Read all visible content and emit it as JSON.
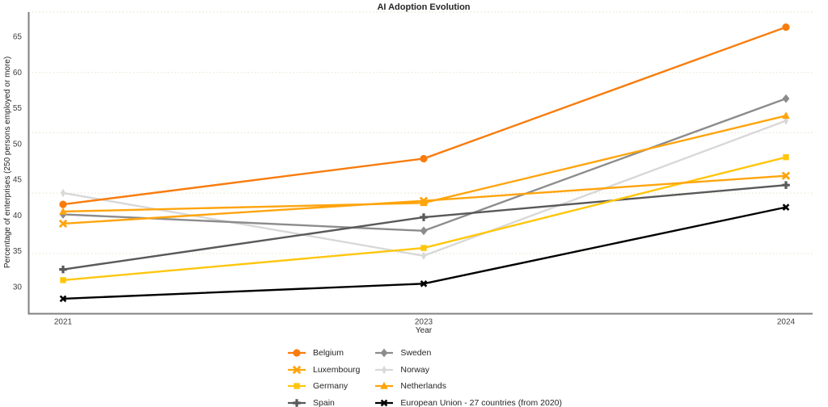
{
  "title": "AI Adoption Evolution",
  "chart_data": {
    "type": "line",
    "title": "AI Adoption Evolution",
    "xlabel": "Year",
    "ylabel": "Percentage of enterprises (250 persons employed or more)",
    "x_categories": [
      "2021",
      "2023",
      "2024"
    ],
    "yticks": [
      30,
      35,
      40,
      45,
      50,
      55,
      60,
      65
    ],
    "ylim": [
      26.2,
      68.4
    ],
    "grid": "horizontal dotted lines, 5 evenly spaced",
    "grid_color": "#EBE4D4",
    "axis_color": "#808080",
    "tick_color": "#404040",
    "legend_position": "bottom, two columns",
    "series": [
      {
        "name": "Belgium",
        "color": "#F87C0D",
        "marker": "circle",
        "values": [
          41.5,
          47.9,
          66.3
        ]
      },
      {
        "name": "Luxembourg",
        "color": "#FFA40D",
        "marker": "x",
        "values": [
          38.8,
          42.0,
          45.5
        ]
      },
      {
        "name": "Germany",
        "color": "#FFC60D",
        "marker": "square",
        "values": [
          30.9,
          35.4,
          48.1
        ]
      },
      {
        "name": "Spain",
        "color": "#595959",
        "marker": "plus",
        "values": [
          32.4,
          39.7,
          44.2
        ]
      },
      {
        "name": "Sweden",
        "color": "#8C8C8C",
        "marker": "diamond",
        "values": [
          40.1,
          37.8,
          56.3
        ]
      },
      {
        "name": "Norway",
        "color": "#D8D8D8",
        "marker": "thin-diamond",
        "values": [
          43.1,
          34.3,
          53.2
        ]
      },
      {
        "name": "Netherlands",
        "color": "#FFA40D",
        "marker": "triangle-up",
        "values": [
          40.5,
          41.7,
          53.9
        ]
      },
      {
        "name": "European Union - 27 countries (from 2020)",
        "color": "#000000",
        "marker": "x-small",
        "values": [
          28.3,
          30.4,
          41.1
        ]
      }
    ],
    "draw_order": [
      5,
      4,
      3,
      2,
      1,
      6,
      0,
      7
    ]
  }
}
